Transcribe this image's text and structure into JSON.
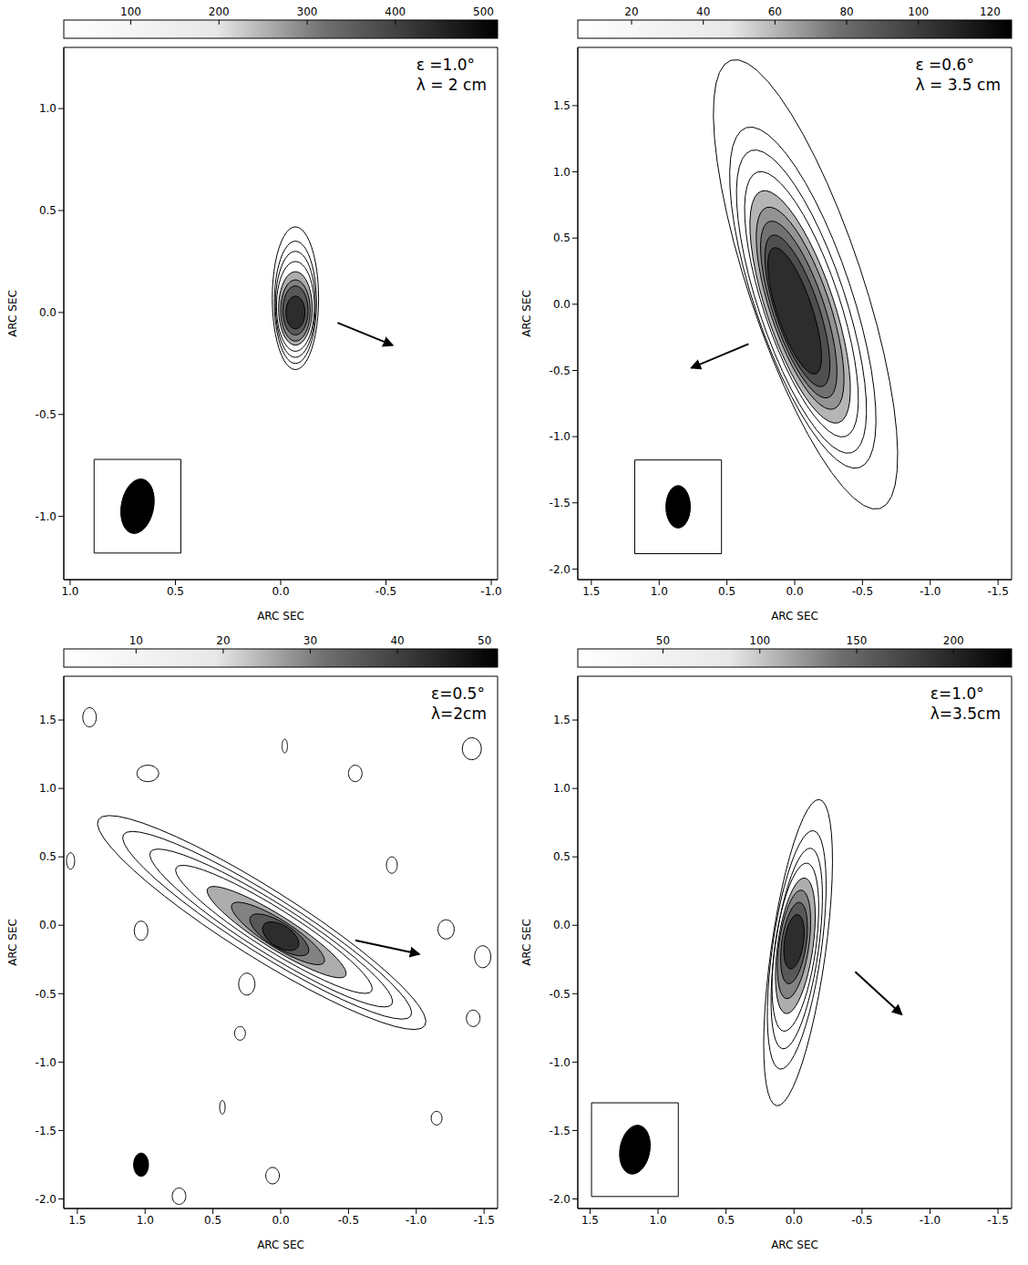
{
  "chart_data": [
    {
      "type": "contour",
      "annotations": [
        "ε =1.0°",
        "λ = 2 cm"
      ],
      "x_label": "ARC SEC",
      "y_label": "ARC SEC",
      "xlim": [
        1.03,
        -1.03
      ],
      "ylim": [
        -1.31,
        1.3
      ],
      "xticks": [
        {
          "value": 1,
          "label": "1.0"
        },
        0.5,
        {
          "value": 0,
          "label": "0.0"
        },
        -0.5,
        {
          "value": -1,
          "label": "-1.0"
        }
      ],
      "yticks": [
        {
          "value": 1,
          "label": "1.0"
        },
        0.5,
        {
          "value": 0,
          "label": "0.0"
        },
        -0.5,
        {
          "value": -1,
          "label": "-1.0"
        }
      ],
      "colorbar": {
        "range": [
          24,
          516
        ],
        "ticks": [
          100,
          200,
          300,
          400,
          500
        ]
      },
      "contours": [
        {
          "x": -0.07,
          "y": 0.07,
          "a": 0.35,
          "b": 0.11,
          "pa": 0
        },
        {
          "x": -0.07,
          "y": 0.05,
          "a": 0.3,
          "b": 0.1,
          "pa": 0
        },
        {
          "x": -0.07,
          "y": 0.04,
          "a": 0.26,
          "b": 0.095,
          "pa": 0
        },
        {
          "x": -0.07,
          "y": 0.03,
          "a": 0.22,
          "b": 0.09,
          "pa": 0
        },
        {
          "x": -0.07,
          "y": 0.02,
          "a": 0.18,
          "b": 0.08,
          "pa": 0
        },
        {
          "x": -0.07,
          "y": 0.01,
          "a": 0.15,
          "b": 0.07,
          "pa": 0
        },
        {
          "x": -0.07,
          "y": 0.01,
          "a": 0.12,
          "b": 0.06,
          "pa": 0
        },
        {
          "x": -0.07,
          "y": 0.0,
          "a": 0.08,
          "b": 0.045,
          "pa": 0
        }
      ],
      "beam": {
        "x": 0.68,
        "y": -0.95,
        "a": 0.135,
        "b": 0.077,
        "pa": -10
      },
      "arrow": {
        "from": [
          -0.27,
          -0.05
        ],
        "to": [
          -0.53,
          -0.16
        ]
      }
    },
    {
      "type": "contour",
      "annotations": [
        "ε =0.6°",
        "λ = 3.5 cm"
      ],
      "x_label": "ARC SEC",
      "y_label": "ARC SEC",
      "xlim": [
        1.6,
        -1.6
      ],
      "ylim": [
        -2.08,
        1.94
      ],
      "xticks": [
        1.5,
        {
          "value": 1,
          "label": "1.0"
        },
        0.5,
        {
          "value": 0,
          "label": "0.0"
        },
        -0.5,
        {
          "value": -1,
          "label": "-1.0"
        },
        -1.5
      ],
      "yticks": [
        1.5,
        {
          "value": 1,
          "label": "1.0"
        },
        0.5,
        {
          "value": 0,
          "label": "0.0"
        },
        -0.5,
        {
          "value": -1,
          "label": "-1.0"
        },
        -1.5,
        {
          "value": -2,
          "label": "-2.0"
        }
      ],
      "colorbar": {
        "range": [
          5,
          126
        ],
        "ticks": [
          20,
          40,
          60,
          80,
          100,
          120
        ]
      },
      "contours": [
        {
          "x": -0.08,
          "y": 0.15,
          "a": 1.78,
          "b": 0.42,
          "pa": 18
        },
        {
          "x": -0.06,
          "y": 0.05,
          "a": 1.35,
          "b": 0.36,
          "pa": 18
        },
        {
          "x": -0.05,
          "y": 0.02,
          "a": 1.2,
          "b": 0.32,
          "pa": 18
        },
        {
          "x": -0.05,
          "y": 0.0,
          "a": 1.05,
          "b": 0.28,
          "pa": 18
        },
        {
          "x": -0.04,
          "y": -0.02,
          "a": 0.92,
          "b": 0.25,
          "pa": 18
        },
        {
          "x": -0.04,
          "y": -0.03,
          "a": 0.8,
          "b": 0.22,
          "pa": 18
        },
        {
          "x": -0.03,
          "y": -0.04,
          "a": 0.7,
          "b": 0.19,
          "pa": 18
        },
        {
          "x": -0.02,
          "y": -0.05,
          "a": 0.6,
          "b": 0.16,
          "pa": 18
        },
        {
          "x": 0.0,
          "y": -0.05,
          "a": 0.5,
          "b": 0.13,
          "pa": 18
        }
      ],
      "beam": {
        "x": 0.86,
        "y": -1.53,
        "a": 0.16,
        "b": 0.09,
        "pa": 0
      },
      "arrow": {
        "from": [
          0.34,
          -0.3
        ],
        "to": [
          0.76,
          -0.48
        ]
      }
    },
    {
      "type": "contour",
      "annotations": [
        "ε=0.5°",
        "λ=2cm"
      ],
      "x_label": "ARC SEC",
      "y_label": "ARC SEC",
      "xlim": [
        1.6,
        -1.6
      ],
      "ylim": [
        -2.07,
        1.82
      ],
      "xticks": [
        1.5,
        {
          "value": 1,
          "label": "1.0"
        },
        0.5,
        {
          "value": 0,
          "label": "0.0"
        },
        -0.5,
        {
          "value": -1,
          "label": "-1.0"
        },
        -1.5
      ],
      "yticks": [
        1.5,
        {
          "value": 1,
          "label": "1.0"
        },
        0.5,
        {
          "value": 0,
          "label": "0.0"
        },
        -0.5,
        {
          "value": -1,
          "label": "-1.0"
        },
        -1.5,
        {
          "value": -2,
          "label": "-2.0"
        }
      ],
      "colorbar": {
        "range": [
          1.7,
          51.5
        ],
        "ticks": [
          10,
          20,
          30,
          40,
          50
        ]
      },
      "contours": [
        {
          "x": 0.14,
          "y": 0.02,
          "a": 1.42,
          "b": 0.25,
          "pa": 58
        },
        {
          "x": 0.1,
          "y": 0.0,
          "a": 1.25,
          "b": 0.21,
          "pa": 58
        },
        {
          "x": 0.07,
          "y": -0.02,
          "a": 1.05,
          "b": 0.18,
          "pa": 58
        },
        {
          "x": 0.05,
          "y": -0.03,
          "a": 0.85,
          "b": 0.15,
          "pa": 58
        },
        {
          "x": 0.03,
          "y": -0.05,
          "a": 0.6,
          "b": 0.12,
          "pa": 58
        },
        {
          "x": 0.02,
          "y": -0.06,
          "a": 0.4,
          "b": 0.1,
          "pa": 58
        },
        {
          "x": 0.01,
          "y": -0.07,
          "a": 0.25,
          "b": 0.09,
          "pa": 58
        },
        {
          "x": 0.0,
          "y": -0.08,
          "a": 0.15,
          "b": 0.08,
          "pa": 58
        }
      ],
      "noise_contours": [
        {
          "x": 1.41,
          "y": 1.52,
          "a": 0.07,
          "b": 0.05,
          "pa": 0
        },
        {
          "x": 0.98,
          "y": 1.11,
          "a": 0.08,
          "b": 0.06,
          "pa": 90
        },
        {
          "x": -0.03,
          "y": 1.31,
          "a": 0.05,
          "b": 0.02,
          "pa": 0
        },
        {
          "x": -0.55,
          "y": 1.11,
          "a": 0.06,
          "b": 0.05,
          "pa": 0
        },
        {
          "x": -1.41,
          "y": 1.29,
          "a": 0.08,
          "b": 0.07,
          "pa": 0
        },
        {
          "x": 1.55,
          "y": 0.47,
          "a": 0.06,
          "b": 0.03,
          "pa": 0
        },
        {
          "x": 1.03,
          "y": -0.04,
          "a": 0.07,
          "b": 0.05,
          "pa": 0
        },
        {
          "x": 0.25,
          "y": -0.43,
          "a": 0.08,
          "b": 0.06,
          "pa": 0
        },
        {
          "x": 0.3,
          "y": -0.79,
          "a": 0.05,
          "b": 0.04,
          "pa": 0
        },
        {
          "x": 0.43,
          "y": -1.33,
          "a": 0.05,
          "b": 0.02,
          "pa": 0
        },
        {
          "x": 0.06,
          "y": -1.83,
          "a": 0.06,
          "b": 0.05,
          "pa": 0
        },
        {
          "x": 0.75,
          "y": -1.98,
          "a": 0.06,
          "b": 0.05,
          "pa": 0
        },
        {
          "x": -0.82,
          "y": 0.44,
          "a": 0.06,
          "b": 0.04,
          "pa": 0
        },
        {
          "x": -1.22,
          "y": -0.03,
          "a": 0.07,
          "b": 0.06,
          "pa": 0
        },
        {
          "x": -1.49,
          "y": -0.23,
          "a": 0.08,
          "b": 0.06,
          "pa": 0
        },
        {
          "x": -1.42,
          "y": -0.68,
          "a": 0.06,
          "b": 0.05,
          "pa": 0
        },
        {
          "x": -1.15,
          "y": -1.41,
          "a": 0.05,
          "b": 0.04,
          "pa": 0
        }
      ],
      "beam": {
        "x": 1.03,
        "y": -1.75,
        "a": 0.085,
        "b": 0.055,
        "pa": 0
      },
      "arrow": {
        "from": [
          -0.55,
          -0.11
        ],
        "to": [
          -1.02,
          -0.21
        ]
      }
    },
    {
      "type": "contour",
      "annotations": [
        "ε=1.0°",
        "λ=3.5cm"
      ],
      "x_label": "ARC SEC",
      "y_label": "ARC SEC",
      "xlim": [
        1.59,
        -1.6
      ],
      "ylim": [
        -2.07,
        1.82
      ],
      "xticks": [
        1.5,
        {
          "value": 1,
          "label": "1.0"
        },
        0.5,
        {
          "value": 0,
          "label": "0.0"
        },
        -0.5,
        {
          "value": -1,
          "label": "-1.0"
        },
        -1.5
      ],
      "yticks": [
        1.5,
        {
          "value": 1,
          "label": "1.0"
        },
        0.5,
        {
          "value": 0,
          "label": "0.0"
        },
        -0.5,
        {
          "value": -1,
          "label": "-1.0"
        },
        -1.5,
        {
          "value": -2,
          "label": "-2.0"
        }
      ],
      "colorbar": {
        "range": [
          6,
          230
        ],
        "ticks": [
          50,
          100,
          150,
          200
        ]
      },
      "contours": [
        {
          "x": -0.03,
          "y": -0.2,
          "a": 1.13,
          "b": 0.2,
          "pa": -8
        },
        {
          "x": -0.02,
          "y": -0.18,
          "a": 0.88,
          "b": 0.18,
          "pa": -8
        },
        {
          "x": -0.02,
          "y": -0.17,
          "a": 0.74,
          "b": 0.16,
          "pa": -8
        },
        {
          "x": -0.01,
          "y": -0.16,
          "a": 0.62,
          "b": 0.15,
          "pa": -8
        },
        {
          "x": -0.01,
          "y": -0.15,
          "a": 0.5,
          "b": 0.13,
          "pa": -8
        },
        {
          "x": 0.0,
          "y": -0.14,
          "a": 0.4,
          "b": 0.11,
          "pa": -8
        },
        {
          "x": 0.0,
          "y": -0.13,
          "a": 0.3,
          "b": 0.09,
          "pa": -8
        },
        {
          "x": 0.0,
          "y": -0.12,
          "a": 0.2,
          "b": 0.07,
          "pa": -8
        }
      ],
      "beam": {
        "x": 1.17,
        "y": -1.64,
        "a": 0.18,
        "b": 0.11,
        "pa": -10
      },
      "arrow": {
        "from": [
          -0.45,
          -0.34
        ],
        "to": [
          -0.79,
          -0.65
        ]
      }
    }
  ]
}
